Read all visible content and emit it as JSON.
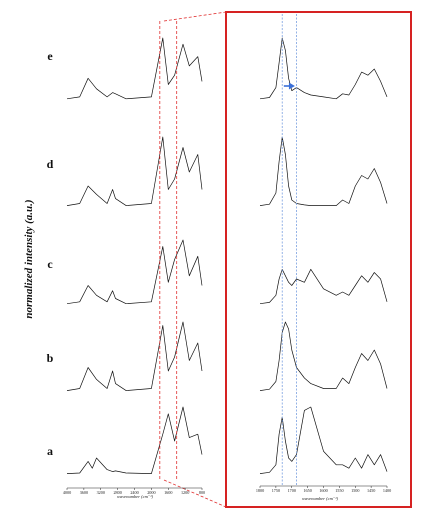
{
  "chart_data": {
    "type": "line",
    "y_axis_title": "normalized intensity (a.u.)",
    "panels": [
      {
        "name": "full-range",
        "xlabel": "wavenumber (cm⁻¹)",
        "x_ticks": [
          4000,
          3600,
          3200,
          2800,
          2400,
          2000,
          1600,
          1200,
          800
        ],
        "xlim": [
          4000,
          800
        ],
        "grid": false
      },
      {
        "name": "zoom",
        "xlabel": "wavenumber (cm⁻¹)",
        "x_ticks": [
          1800,
          1750,
          1700,
          1650,
          1600,
          1550,
          1500,
          1450,
          1400
        ],
        "xlim": [
          1800,
          1400
        ],
        "reference_lines": [
          1730,
          1685
        ],
        "shift_arrow": {
          "series": "e",
          "from": 1725,
          "to": 1690
        }
      }
    ],
    "series": [
      {
        "name": "e",
        "full": {
          "x": [
            4000,
            3700,
            3500,
            3300,
            3050,
            2920,
            2850,
            2600,
            2000,
            1730,
            1600,
            1450,
            1250,
            1100,
            900,
            800
          ],
          "y": [
            0.02,
            0.05,
            0.35,
            0.18,
            0.05,
            0.12,
            0.1,
            0.02,
            0.05,
            1.0,
            0.25,
            0.4,
            0.9,
            0.55,
            0.7,
            0.3
          ]
        },
        "zoom": {
          "x": [
            1800,
            1770,
            1750,
            1740,
            1730,
            1720,
            1710,
            1700,
            1685,
            1660,
            1640,
            1600,
            1560,
            1540,
            1520,
            1500,
            1480,
            1460,
            1440,
            1420,
            1400
          ],
          "y": [
            0.02,
            0.04,
            0.2,
            0.6,
            1.0,
            0.8,
            0.35,
            0.15,
            0.2,
            0.12,
            0.08,
            0.05,
            0.02,
            0.1,
            0.08,
            0.25,
            0.45,
            0.4,
            0.5,
            0.3,
            0.05
          ]
        }
      },
      {
        "name": "d",
        "full": {
          "x": [
            4000,
            3700,
            3500,
            3300,
            3050,
            2920,
            2850,
            2600,
            2000,
            1730,
            1600,
            1450,
            1250,
            1100,
            900,
            800
          ],
          "y": [
            0.02,
            0.05,
            0.3,
            0.18,
            0.05,
            0.25,
            0.12,
            0.02,
            0.05,
            1.0,
            0.25,
            0.4,
            0.85,
            0.5,
            0.75,
            0.25
          ]
        },
        "zoom": {
          "x": [
            1800,
            1770,
            1750,
            1740,
            1730,
            1720,
            1710,
            1700,
            1685,
            1660,
            1640,
            1600,
            1560,
            1540,
            1520,
            1500,
            1480,
            1460,
            1440,
            1420,
            1400
          ],
          "y": [
            0.02,
            0.04,
            0.2,
            0.65,
            1.0,
            0.75,
            0.3,
            0.1,
            0.05,
            0.03,
            0.02,
            0.02,
            0.02,
            0.1,
            0.05,
            0.3,
            0.45,
            0.4,
            0.55,
            0.35,
            0.05
          ]
        }
      },
      {
        "name": "c",
        "full": {
          "x": [
            4000,
            3700,
            3500,
            3300,
            3050,
            2920,
            2850,
            2600,
            2000,
            1730,
            1600,
            1450,
            1250,
            1100,
            900,
            800
          ],
          "y": [
            0.02,
            0.05,
            0.3,
            0.15,
            0.05,
            0.22,
            0.1,
            0.02,
            0.05,
            0.9,
            0.35,
            0.7,
            1.0,
            0.45,
            0.75,
            0.3
          ]
        },
        "zoom": {
          "x": [
            1800,
            1770,
            1750,
            1740,
            1730,
            1720,
            1710,
            1700,
            1685,
            1660,
            1640,
            1600,
            1560,
            1540,
            1520,
            1500,
            1480,
            1460,
            1440,
            1420,
            1400
          ],
          "y": [
            0.02,
            0.04,
            0.15,
            0.4,
            0.55,
            0.45,
            0.35,
            0.3,
            0.4,
            0.35,
            0.55,
            0.25,
            0.15,
            0.2,
            0.15,
            0.3,
            0.45,
            0.35,
            0.5,
            0.4,
            0.05
          ]
        }
      },
      {
        "name": "b",
        "full": {
          "x": [
            4000,
            3700,
            3500,
            3300,
            3050,
            2920,
            2850,
            2600,
            2000,
            1730,
            1600,
            1450,
            1250,
            1100,
            900,
            800
          ],
          "y": [
            0.02,
            0.05,
            0.35,
            0.18,
            0.05,
            0.3,
            0.12,
            0.02,
            0.05,
            0.95,
            0.3,
            0.5,
            1.0,
            0.45,
            0.7,
            0.3
          ]
        },
        "zoom": {
          "x": [
            1800,
            1770,
            1750,
            1740,
            1730,
            1720,
            1710,
            1700,
            1685,
            1660,
            1640,
            1600,
            1560,
            1540,
            1520,
            1500,
            1480,
            1460,
            1440,
            1420,
            1400
          ],
          "y": [
            0.02,
            0.04,
            0.15,
            0.45,
            0.85,
            1.0,
            0.9,
            0.6,
            0.35,
            0.2,
            0.12,
            0.05,
            0.05,
            0.2,
            0.12,
            0.35,
            0.55,
            0.45,
            0.6,
            0.4,
            0.05
          ]
        }
      },
      {
        "name": "a",
        "full": {
          "x": [
            4000,
            3700,
            3500,
            3400,
            3300,
            3050,
            2920,
            2850,
            2600,
            2000,
            1730,
            1600,
            1450,
            1250,
            1100,
            900,
            800
          ],
          "y": [
            0.02,
            0.03,
            0.2,
            0.1,
            0.25,
            0.08,
            0.05,
            0.06,
            0.03,
            0.02,
            0.6,
            0.9,
            0.5,
            1.0,
            0.55,
            0.6,
            0.3
          ]
        },
        "zoom": {
          "x": [
            1800,
            1770,
            1750,
            1740,
            1730,
            1720,
            1710,
            1700,
            1685,
            1660,
            1640,
            1600,
            1560,
            1540,
            1520,
            1500,
            1480,
            1460,
            1440,
            1420,
            1400
          ],
          "y": [
            0.02,
            0.04,
            0.15,
            0.6,
            0.85,
            0.5,
            0.25,
            0.2,
            0.3,
            0.95,
            1.0,
            0.35,
            0.15,
            0.15,
            0.1,
            0.25,
            0.1,
            0.3,
            0.15,
            0.3,
            0.05
          ]
        }
      }
    ]
  }
}
